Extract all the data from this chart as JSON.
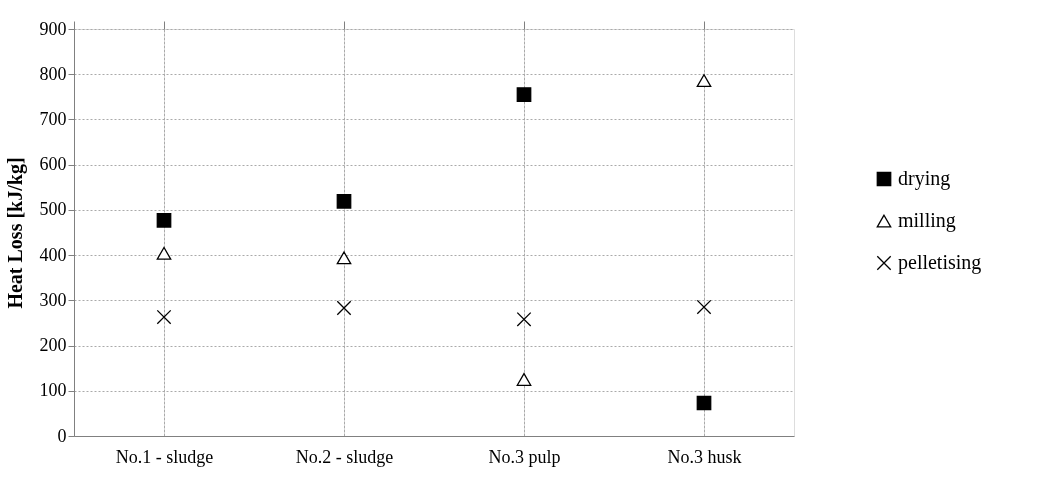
{
  "chart_data": {
    "type": "scatter",
    "ylabel": "Heat Loss [kJ/kg]",
    "categories": [
      "No.1 - sludge",
      "No.2 - sludge",
      "No.3 pulp",
      "No.3 husk"
    ],
    "series": [
      {
        "name": "drying",
        "color": "#000000",
        "marker": "square",
        "values": [
          477,
          519,
          755,
          73
        ]
      },
      {
        "name": "milling",
        "color": "#000000",
        "marker": "triangle",
        "values": [
          404,
          394,
          125,
          786
        ]
      },
      {
        "name": "pelletising",
        "color": "#000000",
        "marker": "cross",
        "values": [
          263,
          283,
          258,
          285
        ]
      }
    ],
    "ylim": [
      0,
      900
    ],
    "yticks": [
      0,
      100,
      200,
      300,
      400,
      500,
      600,
      700,
      800,
      900
    ],
    "grid": true,
    "legend": "right"
  }
}
